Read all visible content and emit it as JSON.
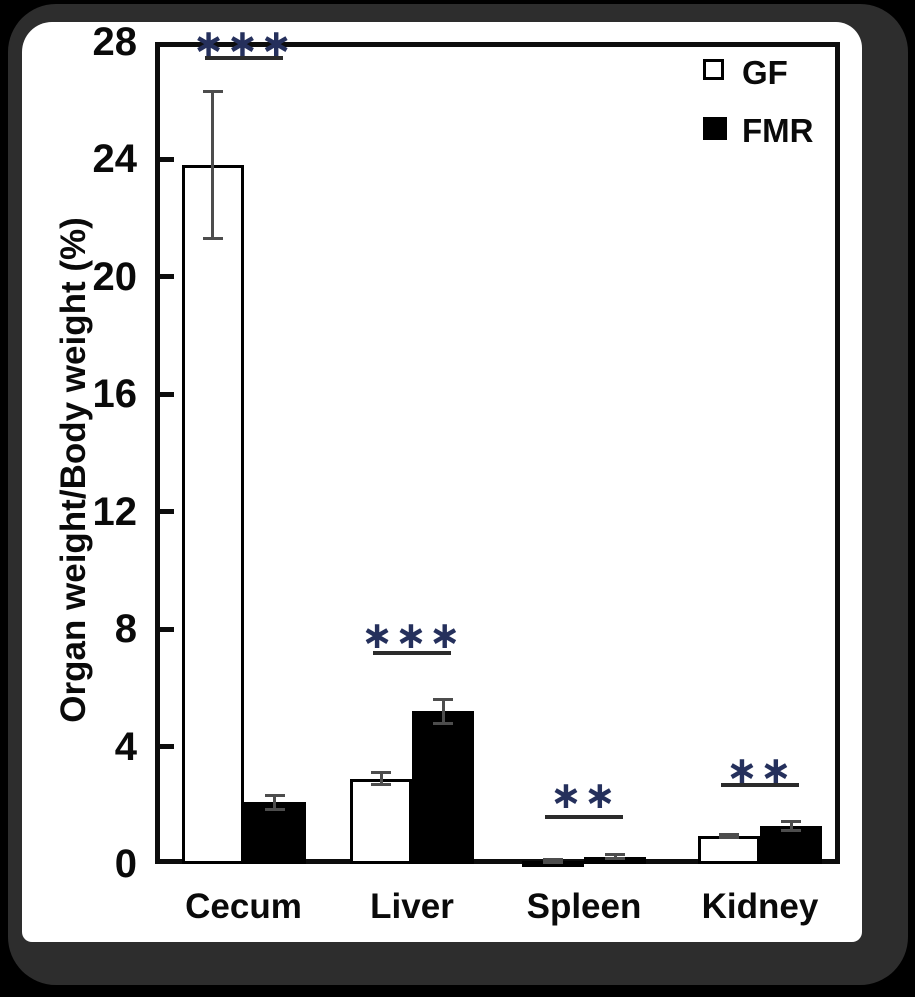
{
  "figure": {
    "outer_background": "#000000",
    "frame_color": "#2d2d2d",
    "panel_background": "#ffffff"
  },
  "chart_data": {
    "type": "bar",
    "title": "",
    "xlabel": "",
    "ylabel": "Organ weight/Body weight (%)",
    "ylim": [
      0,
      28
    ],
    "yticks": [
      0,
      4,
      8,
      12,
      16,
      20,
      24,
      28
    ],
    "grid": false,
    "categories": [
      "Cecum",
      "Liver",
      "Spleen",
      "Kidney"
    ],
    "series": [
      {
        "name": "GF",
        "fill": "#ffffff",
        "border": "#000000",
        "values": [
          23.8,
          2.9,
          0.1,
          0.95
        ],
        "errors": [
          2.5,
          0.2,
          0.04,
          0.06
        ]
      },
      {
        "name": "FMR",
        "fill": "#000000",
        "border": "#000000",
        "values": [
          2.1,
          5.2,
          0.25,
          1.3
        ],
        "errors": [
          0.25,
          0.4,
          0.07,
          0.15
        ]
      }
    ],
    "legend": {
      "position": "top-right",
      "items": [
        "GF",
        "FMR"
      ]
    },
    "significance_markers": [
      {
        "category": "Cecum",
        "label": "***",
        "star_y": 27.95,
        "line_y": 27.45
      },
      {
        "category": "Liver",
        "label": "***",
        "star_y": 7.8,
        "line_y": 7.2
      },
      {
        "category": "Spleen",
        "label": "**",
        "star_y": 2.35,
        "line_y": 1.6
      },
      {
        "category": "Kidney",
        "label": "**",
        "star_y": 3.2,
        "line_y": 2.7
      }
    ],
    "colors": {
      "axis": "#0d0d0d",
      "error_bar": "#4d4d4d",
      "significance_star": "#25305c",
      "significance_line": "#2b2b2b"
    }
  }
}
